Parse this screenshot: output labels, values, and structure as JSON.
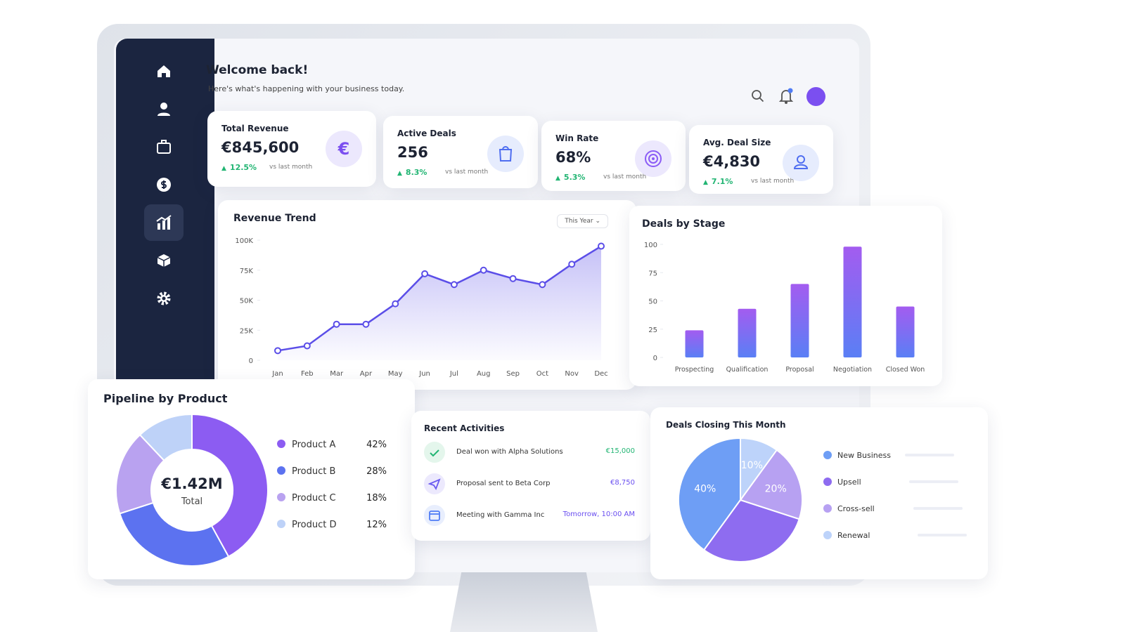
{
  "header": {
    "title": "Welcome back!",
    "subtitle": "Here's what's happening with your business today."
  },
  "kpis": [
    {
      "label": "Total Revenue",
      "value": "€845,600",
      "change": "12.5%",
      "note": "vs last month"
    },
    {
      "label": "Active Deals",
      "value": "256",
      "change": "8.3%",
      "note": "vs last month"
    },
    {
      "label": "Win Rate",
      "value": "68%",
      "change": "5.3%",
      "note": "vs last month"
    },
    {
      "label": "Avg. Deal Size",
      "value": "€4,830",
      "change": "7.1%",
      "note": "vs last month"
    }
  ],
  "activities": {
    "title": "Recent Activities",
    "items": [
      {
        "text": "Deal won with Alpha Solutions",
        "detail": "€15,000"
      },
      {
        "text": "Proposal sent to Beta Corp",
        "detail": "€8,750"
      },
      {
        "text": "Meeting with Gamma Inc",
        "detail": "Tomorrow, 10:00 AM"
      }
    ]
  },
  "chart_data": [
    {
      "type": "line",
      "title": "Revenue Trend",
      "filter": "This Year",
      "categories": [
        "Jan",
        "Feb",
        "Mar",
        "Apr",
        "May",
        "Jun",
        "Jul",
        "Aug",
        "Sep",
        "Oct",
        "Nov",
        "Dec"
      ],
      "values": [
        8000,
        12000,
        30000,
        30000,
        47000,
        72000,
        63000,
        75000,
        68000,
        63000,
        80000,
        95000
      ],
      "color": "#5b4ee8",
      "ylim": [
        0,
        100000
      ],
      "yticks": [
        0,
        {
          "value": 25000,
          "label": "25K"
        },
        {
          "value": 50000,
          "label": "50K"
        },
        {
          "value": 75000,
          "label": "75K"
        },
        {
          "value": 100000,
          "label": "100K"
        }
      ]
    },
    {
      "type": "bar",
      "title": "Deals by Stage",
      "categories": [
        "Prospecting",
        "Qualification",
        "Proposal",
        "Negotiation",
        "Closed Won"
      ],
      "values": [
        24,
        43,
        65,
        98,
        45
      ],
      "gradient": [
        "#a35cf0",
        "#5a7ff5"
      ],
      "ylim": [
        0,
        100
      ],
      "yticks": [
        0,
        25,
        50,
        75,
        100
      ]
    },
    {
      "type": "donut",
      "title": "Pipeline by Product",
      "center_value": "€1.42M",
      "center_label": "Total",
      "categories": [
        "Product A",
        "Product B",
        "Product C",
        "Product D"
      ],
      "values": [
        42,
        28,
        18,
        12
      ],
      "value_labels": [
        "42%",
        "28%",
        "18%",
        "12%"
      ],
      "colors": [
        "#8c5cf2",
        "#5c72f0",
        "#b9a2f0",
        "#bed2f8"
      ]
    },
    {
      "type": "pie",
      "title": "Deals Closing This Month",
      "categories": [
        "New Business",
        "Upsell",
        "Cross-sell",
        "Renewal"
      ],
      "values": [
        40,
        30,
        20,
        10
      ],
      "value_labels": [
        "40%",
        null,
        "20%",
        "10%"
      ],
      "colors": [
        "#6e9ef5",
        "#8e6cf0",
        "#b7a1f2",
        "#bdd3fa"
      ]
    }
  ]
}
